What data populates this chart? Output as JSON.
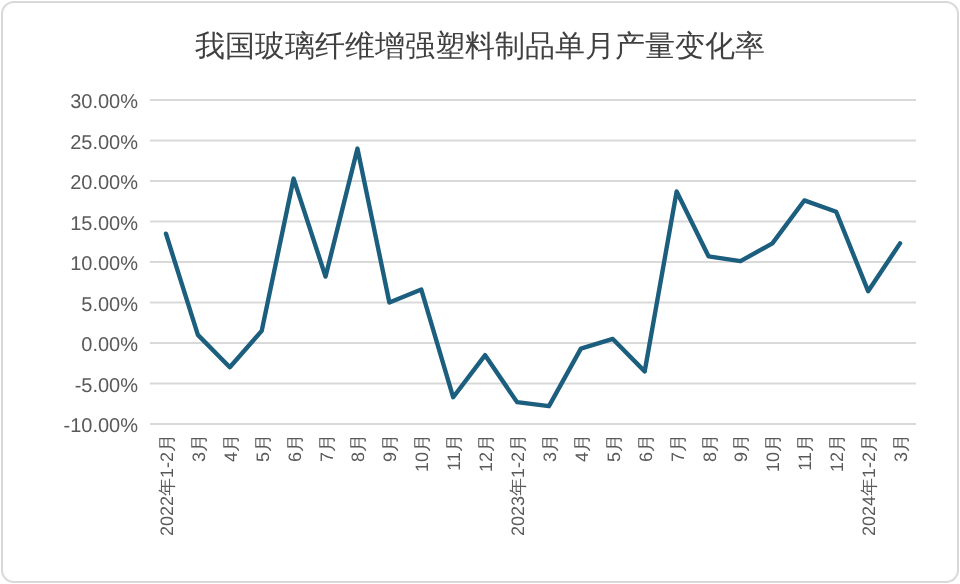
{
  "chart_data": {
    "type": "line",
    "title": "我国玻璃纤维增强塑料制品单月产量变化率",
    "categories": [
      "2022年1-2月",
      "3月",
      "4月",
      "5月",
      "6月",
      "7月",
      "8月",
      "9月",
      "10月",
      "11月",
      "12月",
      "2023年1-2月",
      "3月",
      "4月",
      "5月",
      "6月",
      "7月",
      "8月",
      "9月",
      "10月",
      "11月",
      "12月",
      "2024年1-2月",
      "3月"
    ],
    "series": [
      {
        "color": "#1b5e7e",
        "values": [
          13.5,
          1.0,
          -3.0,
          1.5,
          20.3,
          8.2,
          24.0,
          5.0,
          6.6,
          -6.7,
          -1.5,
          -7.3,
          -7.8,
          -0.7,
          0.5,
          -3.5,
          18.7,
          10.7,
          10.1,
          12.3,
          17.6,
          16.2,
          6.4,
          12.3
        ]
      }
    ],
    "ylim": [
      -10,
      30
    ],
    "yticks": [
      {
        "value": -10,
        "label": "-10.00%"
      },
      {
        "value": -5,
        "label": "-5.00%"
      },
      {
        "value": 0,
        "label": "0.00%"
      },
      {
        "value": 5,
        "label": "5.00%"
      },
      {
        "value": 10,
        "label": "10.00%"
      },
      {
        "value": 15,
        "label": "15.00%"
      },
      {
        "value": 20,
        "label": "20.00%"
      },
      {
        "value": 25,
        "label": "25.00%"
      },
      {
        "value": 30,
        "label": "30.00%"
      }
    ],
    "grid": "y",
    "marker": "none",
    "line_style": "solid"
  }
}
